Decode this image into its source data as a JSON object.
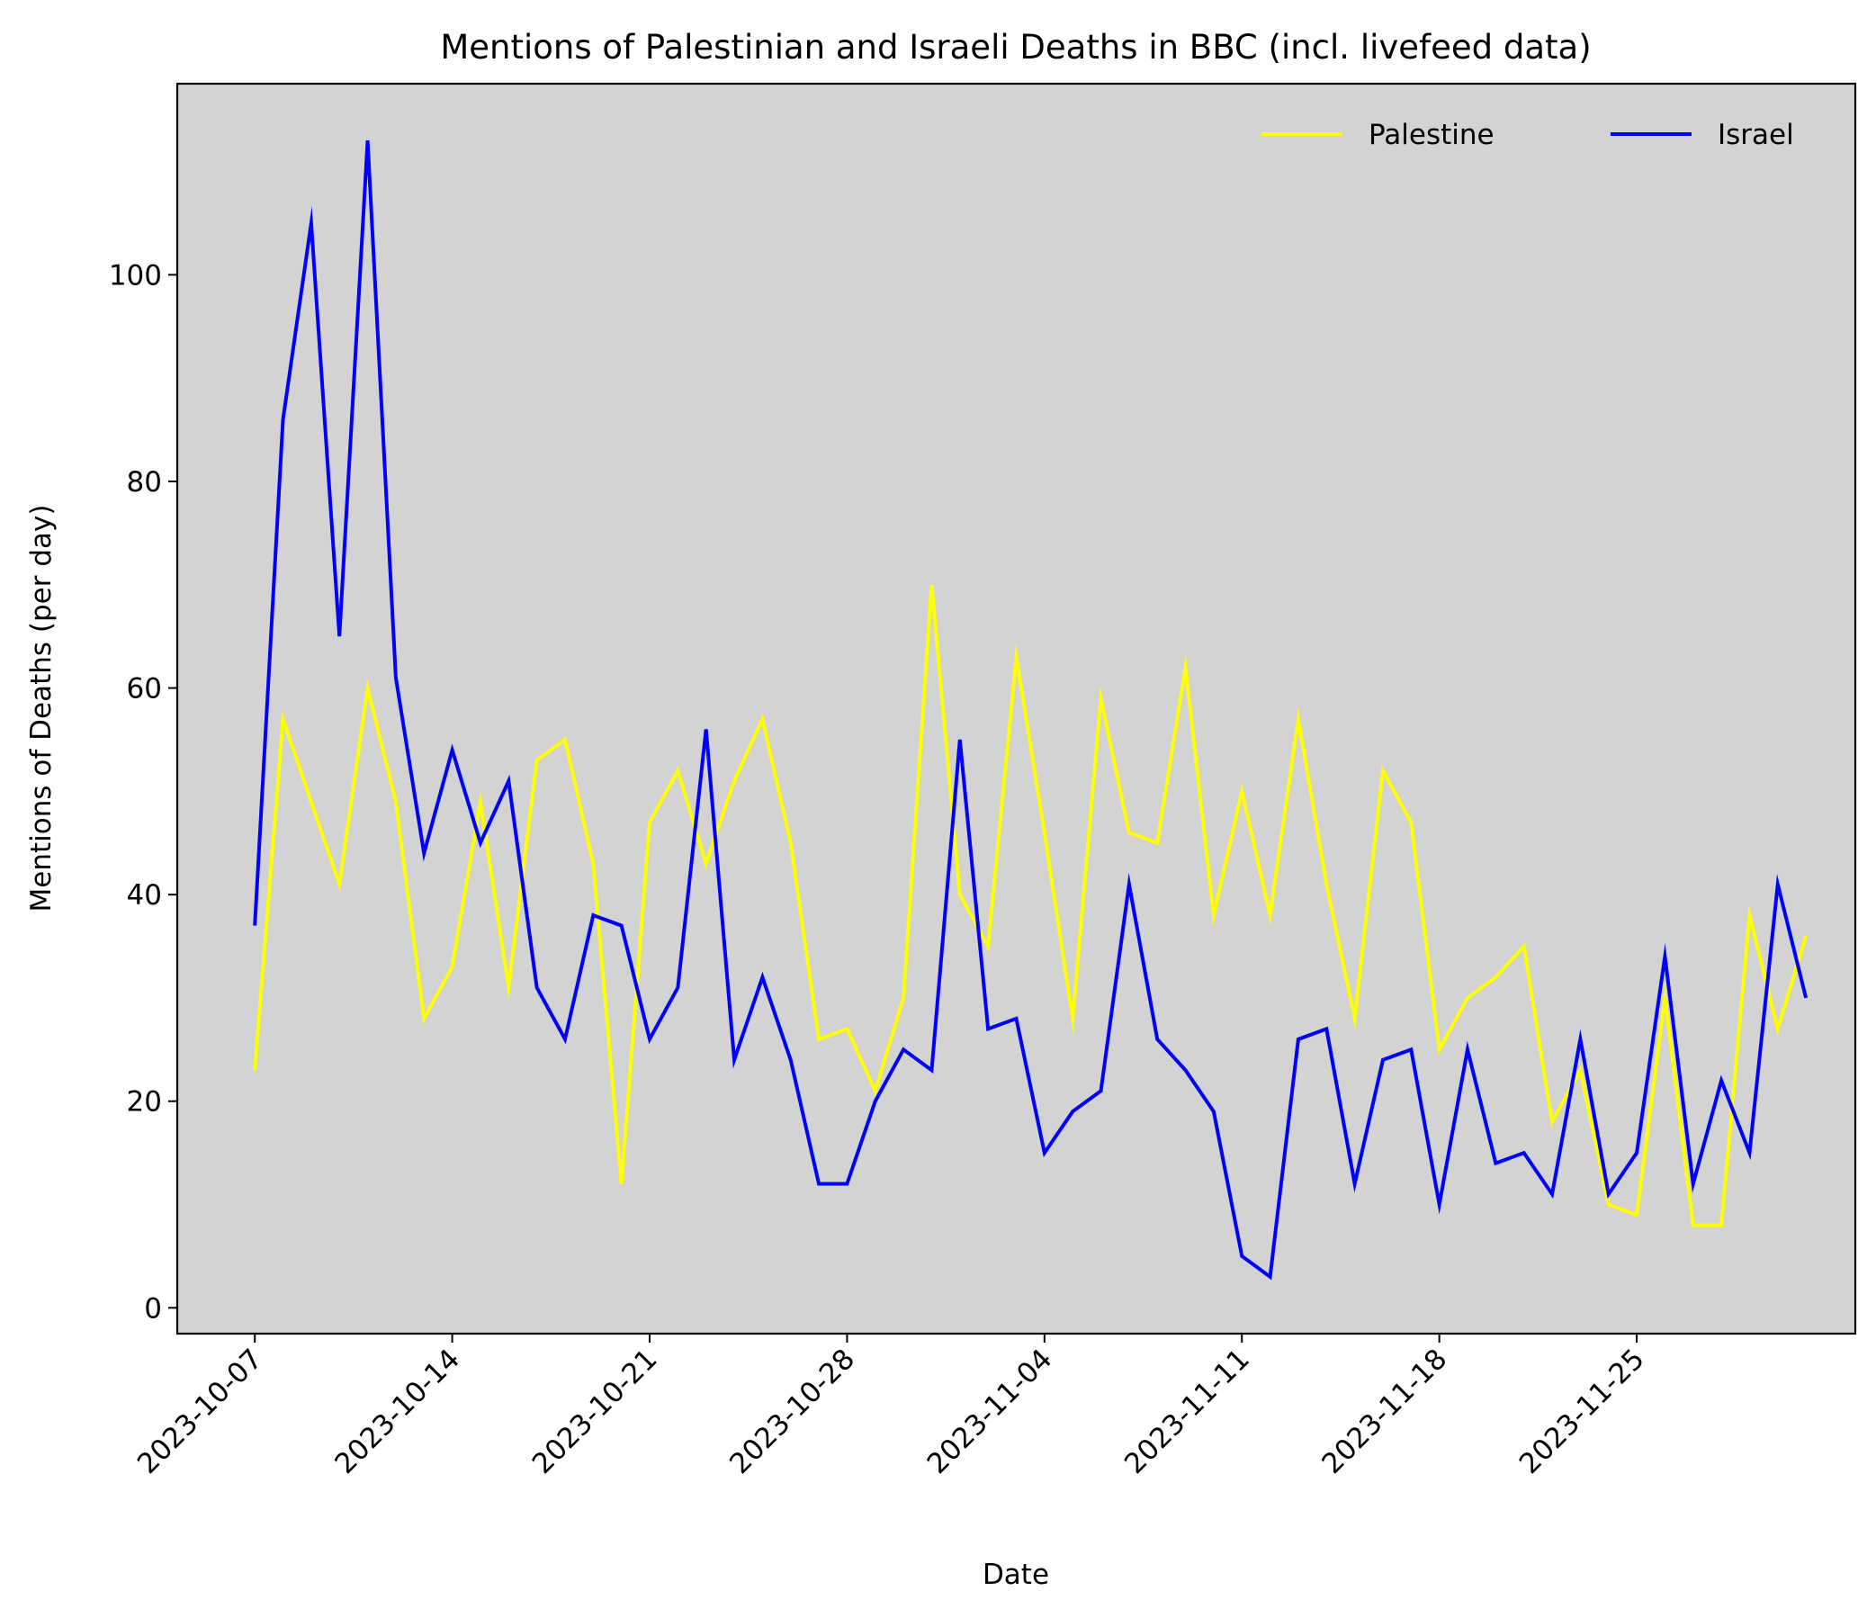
{
  "chart_data": {
    "type": "line",
    "title": "Mentions of Palestinian and Israeli Deaths in BBC (incl. livefeed data)",
    "xlabel": "Date",
    "ylabel": "Mentions of Deaths (per day)",
    "start_date": "2023-10-07",
    "x_tick_labels": [
      "2023-10-07",
      "2023-10-14",
      "2023-10-21",
      "2023-10-28",
      "2023-11-04",
      "2023-11-11",
      "2023-11-18",
      "2023-11-25"
    ],
    "x_tick_days": [
      0,
      7,
      14,
      21,
      28,
      35,
      42,
      49
    ],
    "xlim_days": [
      -2.75,
      56.75
    ],
    "ylim": [
      -2.5,
      118.5
    ],
    "y_ticks": [
      0,
      20,
      40,
      60,
      80,
      100
    ],
    "y_tick_labels": [
      "0",
      "20",
      "40",
      "60",
      "80",
      "100"
    ],
    "legend_position": "top-right",
    "background_color": "#d3d3d3",
    "series": [
      {
        "name": "Palestine",
        "color": "#ffff00",
        "values": [
          23,
          57,
          49,
          41,
          60,
          49,
          28,
          33,
          49,
          31,
          53,
          55,
          43,
          12,
          47,
          52,
          43,
          51,
          57,
          45,
          26,
          27,
          21,
          30,
          70,
          40,
          35,
          63,
          46,
          28,
          59,
          46,
          45,
          62,
          38,
          50,
          38,
          57,
          41,
          28,
          52,
          47,
          25,
          30,
          32,
          35,
          18,
          23,
          10,
          9,
          30,
          8,
          8,
          38,
          27,
          36
        ]
      },
      {
        "name": "Israel",
        "color": "#0000ff",
        "values": [
          37,
          86,
          105,
          65,
          113,
          61,
          44,
          54,
          45,
          51,
          31,
          26,
          38,
          37,
          26,
          31,
          56,
          24,
          32,
          24,
          12,
          12,
          20,
          25,
          23,
          55,
          27,
          28,
          15,
          19,
          21,
          41,
          26,
          23,
          19,
          5,
          3,
          26,
          27,
          12,
          24,
          25,
          10,
          25,
          14,
          15,
          11,
          26,
          11,
          15,
          34,
          12,
          22,
          15,
          41,
          30
        ]
      }
    ]
  }
}
